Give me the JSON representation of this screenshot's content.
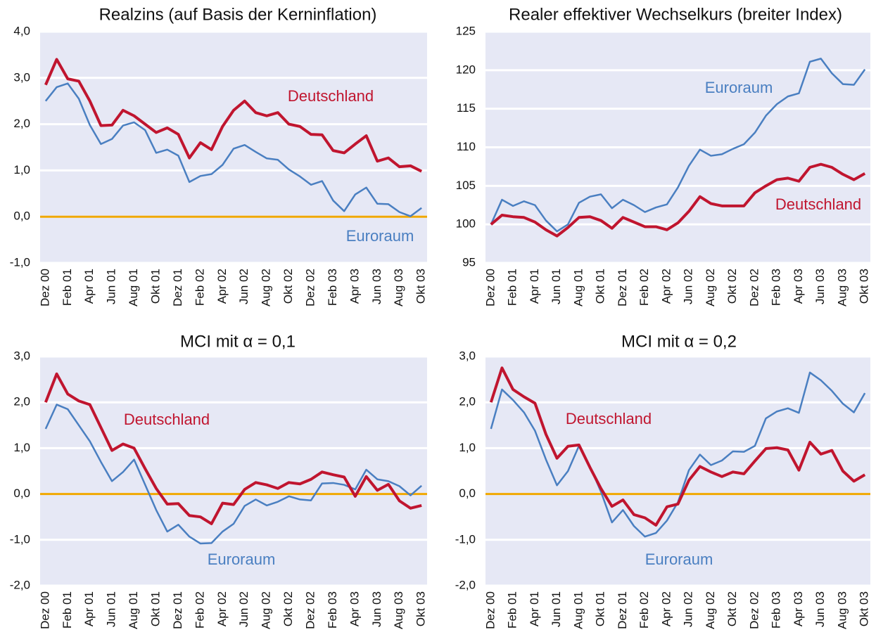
{
  "chart_data": [
    {
      "type": "line",
      "title": "Realzins (auf Basis der Kerninflation)",
      "categories": [
        "Dez 00",
        null,
        "Feb 01",
        null,
        "Apr 01",
        null,
        "Jun 01",
        null,
        "Aug 01",
        null,
        "Okt 01",
        null,
        "Dez 01",
        null,
        "Feb 02",
        null,
        "Apr 02",
        null,
        "Jun 02",
        null,
        "Aug 02",
        null,
        "Okt 02",
        null,
        "Dez 02",
        null,
        "Feb 03",
        null,
        "Apr 03",
        null,
        "Jun 03",
        null,
        "Aug 03",
        null,
        "Okt 03"
      ],
      "series": [
        {
          "name": "Euroraum",
          "color": "#4a7fc1",
          "width": 2.5,
          "values": [
            2.5,
            2.8,
            2.88,
            2.55,
            1.98,
            1.57,
            1.68,
            1.97,
            2.04,
            1.87,
            1.38,
            1.45,
            1.32,
            0.75,
            0.88,
            0.92,
            1.12,
            1.47,
            1.55,
            1.4,
            1.26,
            1.23,
            1.02,
            0.87,
            0.69,
            0.77,
            0.35,
            0.12,
            0.48,
            0.63,
            0.28,
            0.27,
            0.1,
            0.01,
            0.19
          ]
        },
        {
          "name": "Deutschland",
          "color": "#c0152f",
          "width": 4,
          "values": [
            2.85,
            3.4,
            2.98,
            2.93,
            2.5,
            1.97,
            1.98,
            2.3,
            2.18,
            2.0,
            1.82,
            1.92,
            1.78,
            1.27,
            1.6,
            1.45,
            1.95,
            2.3,
            2.5,
            2.25,
            2.18,
            2.25,
            2.0,
            1.95,
            1.78,
            1.77,
            1.43,
            1.38,
            1.57,
            1.75,
            1.2,
            1.27,
            1.08,
            1.1,
            0.98
          ]
        }
      ],
      "ylim": [
        -1,
        4
      ],
      "yticks": [
        {
          "value": -1,
          "label": "-1,0"
        },
        {
          "value": 0,
          "label": "0,0"
        },
        {
          "value": 1,
          "label": "1,0"
        },
        {
          "value": 2,
          "label": "2,0"
        },
        {
          "value": 3,
          "label": "3,0"
        },
        {
          "value": 4,
          "label": "4,0"
        }
      ],
      "grid": true,
      "zero_line": true,
      "zero_line_color": "#f0a800"
    },
    {
      "type": "line",
      "title": "Realer effektiver Wechselkurs (breiter Index)",
      "categories": [
        "Dez 00",
        null,
        "Feb 01",
        null,
        "Apr 01",
        null,
        "Jun 01",
        null,
        "Aug 01",
        null,
        "Okt 01",
        null,
        "Dez 01",
        null,
        "Feb 02",
        null,
        "Apr 02",
        null,
        "Jun 02",
        null,
        "Aug 02",
        null,
        "Okt 02",
        null,
        "Dez 02",
        null,
        "Feb 03",
        null,
        "Apr 03",
        null,
        "Jun 03",
        null,
        "Aug 03",
        null,
        "Okt 03"
      ],
      "series": [
        {
          "name": "Euroraum",
          "color": "#4a7fc1",
          "width": 2.5,
          "values": [
            100,
            103.2,
            102.4,
            103,
            102.5,
            100.5,
            99.1,
            100,
            102.8,
            103.6,
            103.9,
            102.1,
            103.2,
            102.5,
            101.6,
            102.2,
            102.6,
            104.8,
            107.6,
            109.7,
            108.9,
            109.1,
            109.8,
            110.4,
            111.9,
            114.1,
            115.6,
            116.6,
            117,
            121.1,
            121.5,
            119.6,
            118.2,
            118.1,
            120.1
          ]
        },
        {
          "name": "Deutschland",
          "color": "#c0152f",
          "width": 4,
          "values": [
            100,
            101.2,
            101,
            100.9,
            100.3,
            99.3,
            98.5,
            99.6,
            100.9,
            101,
            100.5,
            99.5,
            100.9,
            100.3,
            99.7,
            99.7,
            99.3,
            100.2,
            101.7,
            103.6,
            102.7,
            102.4,
            102.4,
            102.4,
            104.1,
            105,
            105.8,
            106,
            105.6,
            107.4,
            107.8,
            107.4,
            106.5,
            105.8,
            106.6
          ]
        }
      ],
      "ylim": [
        95,
        125
      ],
      "yticks": [
        95,
        100,
        105,
        110,
        115,
        120,
        125
      ],
      "grid": true,
      "zero_line": false
    },
    {
      "type": "line",
      "title": "MCI mit α = 0,1",
      "categories": [
        "Dez 00",
        null,
        "Feb 01",
        null,
        "Apr 01",
        null,
        "Jun 01",
        null,
        "Aug 01",
        null,
        "Okt 01",
        null,
        "Dez 01",
        null,
        "Feb 02",
        null,
        "Apr 02",
        null,
        "Jun 02",
        null,
        "Aug 02",
        null,
        "Okt 02",
        null,
        "Dez 02",
        null,
        "Feb 03",
        null,
        "Apr 03",
        null,
        "Jun 03",
        null,
        "Aug 03",
        null,
        "Okt 03"
      ],
      "series": [
        {
          "name": "Euroraum",
          "color": "#4a7fc1",
          "width": 2.5,
          "values": [
            1.42,
            1.95,
            1.85,
            1.5,
            1.15,
            0.7,
            0.28,
            0.48,
            0.75,
            0.2,
            -0.35,
            -0.82,
            -0.67,
            -0.93,
            -1.08,
            -1.07,
            -0.82,
            -0.65,
            -0.26,
            -0.12,
            -0.25,
            -0.17,
            -0.05,
            -0.12,
            -0.14,
            0.23,
            0.24,
            0.2,
            0.1,
            0.53,
            0.32,
            0.28,
            0.17,
            -0.03,
            0.18
          ]
        },
        {
          "name": "Deutschland",
          "color": "#c0152f",
          "width": 4,
          "values": [
            2.0,
            2.62,
            2.18,
            2.03,
            1.95,
            1.45,
            0.95,
            1.09,
            1.0,
            0.55,
            0.12,
            -0.22,
            -0.21,
            -0.47,
            -0.5,
            -0.65,
            -0.2,
            -0.23,
            0.1,
            0.25,
            0.2,
            0.12,
            0.25,
            0.22,
            0.32,
            0.48,
            0.42,
            0.37,
            -0.05,
            0.38,
            0.08,
            0.21,
            -0.15,
            -0.31,
            -0.25
          ]
        }
      ],
      "ylim": [
        -2,
        3
      ],
      "yticks": [
        {
          "value": -2,
          "label": "-2,0"
        },
        {
          "value": -1,
          "label": "-1,0"
        },
        {
          "value": 0,
          "label": "0,0"
        },
        {
          "value": 1,
          "label": "1,0"
        },
        {
          "value": 2,
          "label": "2,0"
        },
        {
          "value": 3,
          "label": "3,0"
        }
      ],
      "grid": true,
      "zero_line": true,
      "zero_line_color": "#f0a800"
    },
    {
      "type": "line",
      "title": "MCI mit α = 0,2",
      "categories": [
        "Dez 00",
        null,
        "Feb 01",
        null,
        "Apr 01",
        null,
        "Jun 01",
        null,
        "Aug 01",
        null,
        "Okt 01",
        null,
        "Dez 01",
        null,
        "Feb 02",
        null,
        "Apr 02",
        null,
        "Jun 02",
        null,
        "Aug 02",
        null,
        "Okt 02",
        null,
        "Dez 02",
        null,
        "Feb 03",
        null,
        "Apr 03",
        null,
        "Jun 03",
        null,
        "Aug 03",
        null,
        "Okt 03"
      ],
      "series": [
        {
          "name": "Euroraum",
          "color": "#4a7fc1",
          "width": 2.5,
          "values": [
            1.42,
            2.28,
            2.05,
            1.78,
            1.38,
            0.75,
            0.19,
            0.5,
            1.05,
            0.6,
            0.05,
            -0.62,
            -0.35,
            -0.7,
            -0.93,
            -0.85,
            -0.58,
            -0.18,
            0.52,
            0.86,
            0.63,
            0.73,
            0.93,
            0.92,
            1.05,
            1.65,
            1.8,
            1.87,
            1.77,
            2.65,
            2.48,
            2.25,
            1.97,
            1.78,
            2.2
          ]
        },
        {
          "name": "Deutschland",
          "color": "#c0152f",
          "width": 4,
          "values": [
            2.0,
            2.75,
            2.28,
            2.12,
            1.98,
            1.3,
            0.78,
            1.04,
            1.07,
            0.58,
            0.12,
            -0.27,
            -0.13,
            -0.45,
            -0.52,
            -0.68,
            -0.28,
            -0.22,
            0.3,
            0.6,
            0.48,
            0.38,
            0.48,
            0.44,
            0.72,
            0.99,
            1.01,
            0.96,
            0.52,
            1.13,
            0.87,
            0.95,
            0.5,
            0.28,
            0.42
          ]
        }
      ],
      "ylim": [
        -2,
        3
      ],
      "yticks": [
        {
          "value": -2,
          "label": "-2,0"
        },
        {
          "value": -1,
          "label": "-1,0"
        },
        {
          "value": 0,
          "label": "0,0"
        },
        {
          "value": 1,
          "label": "1,0"
        },
        {
          "value": 2,
          "label": "2,0"
        },
        {
          "value": 3,
          "label": "3,0"
        }
      ],
      "grid": true,
      "zero_line": true,
      "zero_line_color": "#f0a800"
    }
  ]
}
